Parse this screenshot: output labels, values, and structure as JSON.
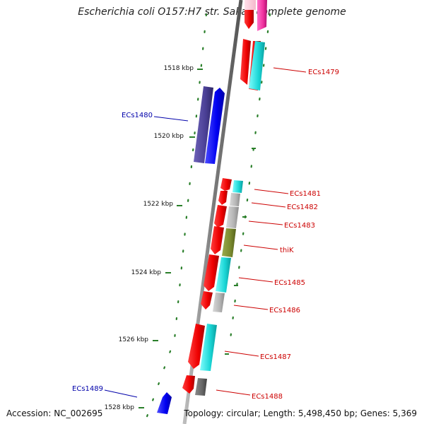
{
  "title": "Escherichia coli O157:H7 str. Sakai, complete genome",
  "footer": {
    "accession": "Accession: NC_002695",
    "topology": "Topology: circular; Length: 5,498,450 bp; Genes: 5,369"
  },
  "colors": {
    "backbone": "#808080",
    "tick": "#2a7f2a",
    "forward_label": "#cc0000",
    "reverse_label": "#0000aa"
  },
  "ticks": [
    {
      "label": "1518 kbp"
    },
    {
      "label": "1520 kbp"
    },
    {
      "label": "1522 kbp"
    },
    {
      "label": "1524 kbp"
    },
    {
      "label": "1526 kbp"
    },
    {
      "label": "1528 kbp"
    }
  ],
  "gene_labels": [
    {
      "text": "ECs1479",
      "strand": "forward"
    },
    {
      "text": "ECs1480",
      "strand": "reverse"
    },
    {
      "text": "ECs1481",
      "strand": "forward"
    },
    {
      "text": "ECs1482",
      "strand": "forward"
    },
    {
      "text": "ECs1483",
      "strand": "forward"
    },
    {
      "text": "thiK",
      "strand": "forward"
    },
    {
      "text": "ECs1485",
      "strand": "forward"
    },
    {
      "text": "ECs1486",
      "strand": "forward"
    },
    {
      "text": "ECs1487",
      "strand": "forward"
    },
    {
      "text": "ECs1488",
      "strand": "forward"
    },
    {
      "text": "ECs1489",
      "strand": "reverse"
    }
  ]
}
